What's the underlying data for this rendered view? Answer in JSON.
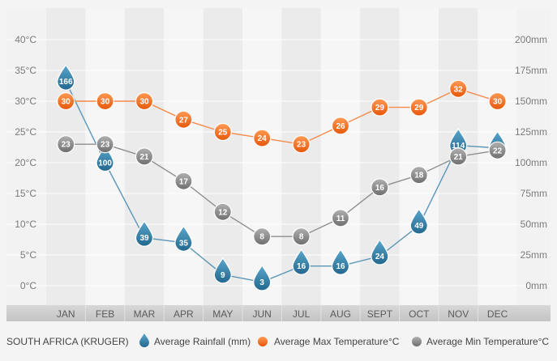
{
  "chart_data": {
    "type": "line",
    "title": "SOUTH AFRICA (KRUGER)",
    "categories": [
      "JAN",
      "FEB",
      "MAR",
      "APR",
      "MAY",
      "JUN",
      "JUL",
      "AUG",
      "SEPT",
      "OCT",
      "NOV",
      "DEC"
    ],
    "y_left": {
      "ticks": [
        "0°C",
        "5°C",
        "10°C",
        "15°C",
        "20°C",
        "25°C",
        "30°C",
        "35°C",
        "40°C"
      ],
      "range": [
        0,
        40
      ]
    },
    "y_right": {
      "ticks": [
        "0mm",
        "25mm",
        "50mm",
        "75mm",
        "100mm",
        "125mm",
        "150mm",
        "175mm",
        "200mm"
      ],
      "range": [
        0,
        200
      ]
    },
    "series": [
      {
        "name": "Average Rainfall (mm)",
        "axis": "right",
        "marker": "drop",
        "color": "#3a7fa4",
        "line_color": "#5a96b8",
        "values": [
          166,
          100,
          39,
          35,
          9,
          3,
          16,
          16,
          24,
          49,
          114,
          112
        ]
      },
      {
        "name": "Average Max Temperature°C",
        "axis": "left",
        "marker": "circle",
        "color": "#f26a1b",
        "line_color": "#f58a4a",
        "values": [
          30,
          30,
          30,
          27,
          25,
          24,
          23,
          26,
          29,
          29,
          32,
          30
        ]
      },
      {
        "name": "Average Min Temperature°C",
        "axis": "left",
        "marker": "circle",
        "color": "#8a8a8a",
        "line_color": "#8f8f8f",
        "values": [
          23,
          23,
          21,
          17,
          12,
          8,
          8,
          11,
          16,
          18,
          21,
          22
        ]
      }
    ],
    "grid": true,
    "legend": "bottom"
  }
}
